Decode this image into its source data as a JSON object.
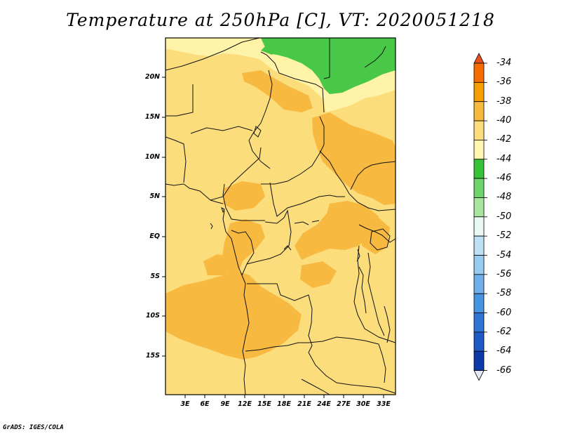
{
  "title": "Temperature at 250hPa [C], VT: 2020051218",
  "y_axis_labels": [
    "20N",
    "15N",
    "10N",
    "5N",
    "EQ",
    "5S",
    "10S",
    "15S"
  ],
  "x_axis_labels": [
    "3E",
    "6E",
    "9E",
    "12E",
    "15E",
    "18E",
    "21E",
    "24E",
    "27E",
    "30E",
    "33E"
  ],
  "colorbar": {
    "labels": [
      "-34",
      "-36",
      "-38",
      "-40",
      "-42",
      "-44",
      "-46",
      "-48",
      "-50",
      "-52",
      "-54",
      "-56",
      "-58",
      "-60",
      "-62",
      "-64",
      "-66"
    ],
    "colors": [
      "#e8501e",
      "#f56c00",
      "#f59e00",
      "#f8b940",
      "#fcdd7c",
      "#fff7b0",
      "#38c23a",
      "#6ed46c",
      "#a8e6a0",
      "#eaf8f2",
      "#bde0f4",
      "#98cbf0",
      "#6fb0ea",
      "#4694e2",
      "#2e76d4",
      "#1d5ac4",
      "#0c3aa6",
      "#08106a"
    ]
  },
  "legend_colors": {
    "base_fill": "#fcdd7c",
    "warm_fill": "#f8b940",
    "light_fill": "#fff3a8",
    "cold_fill": "#48c846",
    "boundary": "#111111"
  },
  "footer": "GrADS: IGES/COLA"
}
